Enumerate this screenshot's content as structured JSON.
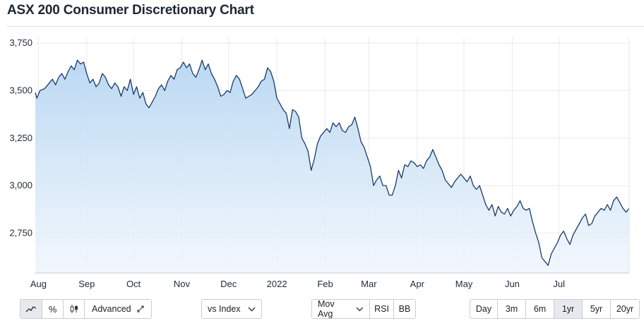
{
  "page": {
    "title": "ASX 200 Consumer Discretionary Chart"
  },
  "toolbar": {
    "chart_type_buttons": [
      {
        "icon": "line-chart-icon",
        "active": true
      },
      {
        "icon": "percent-icon",
        "active": false
      },
      {
        "icon": "candlestick-icon",
        "active": false
      }
    ],
    "advanced_label": "Advanced",
    "advanced_icon": "expand-icon",
    "compare_label": "vs Index",
    "indicators": [
      "Mov Avg",
      "RSI",
      "BB"
    ],
    "ranges": [
      "Day",
      "3m",
      "6m",
      "1yr",
      "5yr",
      "20yr"
    ],
    "active_range": "1yr"
  },
  "colors": {
    "line": "#1b3a66",
    "fill_top": "#b7d6f2",
    "fill_bottom": "#eef5fc",
    "grid": "#e7eaee"
  },
  "chart_data": {
    "type": "area",
    "title": "ASX 200 Consumer Discretionary Chart",
    "xlabel": "",
    "ylabel": "",
    "ylim": [
      2540,
      3780
    ],
    "y_ticks": [
      2750,
      3000,
      3250,
      3500,
      3750
    ],
    "y_tick_labels": [
      "2,750",
      "3,000",
      "3,250",
      "3,500",
      "3,750"
    ],
    "x_ticks": [
      {
        "label": "Aug",
        "day": 1
      },
      {
        "label": "Sep",
        "day": 32
      },
      {
        "label": "Oct",
        "day": 62
      },
      {
        "label": "Nov",
        "day": 93
      },
      {
        "label": "Dec",
        "day": 123
      },
      {
        "label": "2022",
        "day": 154
      },
      {
        "label": "Feb",
        "day": 185
      },
      {
        "label": "Mar",
        "day": 213
      },
      {
        "label": "Apr",
        "day": 244
      },
      {
        "label": "May",
        "day": 274
      },
      {
        "label": "Jun",
        "day": 305
      },
      {
        "label": "Jul",
        "day": 335
      }
    ],
    "grid": true,
    "legend": "none",
    "series": [
      {
        "values": [
          [
            -1,
            3490
          ],
          [
            0,
            3460
          ],
          [
            2,
            3500
          ],
          [
            5,
            3510
          ],
          [
            8,
            3540
          ],
          [
            10,
            3560
          ],
          [
            12,
            3530
          ],
          [
            14,
            3570
          ],
          [
            16,
            3590
          ],
          [
            18,
            3560
          ],
          [
            20,
            3600
          ],
          [
            22,
            3630
          ],
          [
            24,
            3610
          ],
          [
            26,
            3660
          ],
          [
            28,
            3640
          ],
          [
            30,
            3650
          ],
          [
            32,
            3590
          ],
          [
            34,
            3540
          ],
          [
            36,
            3560
          ],
          [
            38,
            3520
          ],
          [
            40,
            3540
          ],
          [
            42,
            3590
          ],
          [
            44,
            3570
          ],
          [
            46,
            3530
          ],
          [
            48,
            3510
          ],
          [
            50,
            3540
          ],
          [
            52,
            3520
          ],
          [
            54,
            3470
          ],
          [
            56,
            3520
          ],
          [
            58,
            3500
          ],
          [
            60,
            3560
          ],
          [
            62,
            3480
          ],
          [
            64,
            3520
          ],
          [
            66,
            3460
          ],
          [
            68,
            3490
          ],
          [
            70,
            3430
          ],
          [
            72,
            3410
          ],
          [
            74,
            3440
          ],
          [
            76,
            3470
          ],
          [
            78,
            3510
          ],
          [
            80,
            3530
          ],
          [
            82,
            3500
          ],
          [
            84,
            3550
          ],
          [
            86,
            3580
          ],
          [
            88,
            3560
          ],
          [
            90,
            3610
          ],
          [
            92,
            3620
          ],
          [
            94,
            3650
          ],
          [
            96,
            3620
          ],
          [
            98,
            3640
          ],
          [
            100,
            3590
          ],
          [
            102,
            3570
          ],
          [
            104,
            3610
          ],
          [
            106,
            3660
          ],
          [
            108,
            3610
          ],
          [
            110,
            3640
          ],
          [
            112,
            3590
          ],
          [
            114,
            3560
          ],
          [
            116,
            3520
          ],
          [
            118,
            3470
          ],
          [
            120,
            3480
          ],
          [
            122,
            3500
          ],
          [
            124,
            3490
          ],
          [
            126,
            3550
          ],
          [
            128,
            3580
          ],
          [
            130,
            3560
          ],
          [
            132,
            3510
          ],
          [
            134,
            3460
          ],
          [
            136,
            3470
          ],
          [
            138,
            3480
          ],
          [
            140,
            3500
          ],
          [
            142,
            3520
          ],
          [
            144,
            3550
          ],
          [
            146,
            3560
          ],
          [
            148,
            3620
          ],
          [
            150,
            3600
          ],
          [
            152,
            3550
          ],
          [
            154,
            3460
          ],
          [
            156,
            3430
          ],
          [
            158,
            3400
          ],
          [
            160,
            3380
          ],
          [
            162,
            3300
          ],
          [
            164,
            3400
          ],
          [
            166,
            3390
          ],
          [
            168,
            3360
          ],
          [
            170,
            3250
          ],
          [
            172,
            3220
          ],
          [
            174,
            3180
          ],
          [
            176,
            3080
          ],
          [
            178,
            3140
          ],
          [
            180,
            3220
          ],
          [
            182,
            3260
          ],
          [
            184,
            3280
          ],
          [
            186,
            3300
          ],
          [
            188,
            3280
          ],
          [
            190,
            3330
          ],
          [
            192,
            3310
          ],
          [
            194,
            3330
          ],
          [
            196,
            3290
          ],
          [
            198,
            3280
          ],
          [
            200,
            3310
          ],
          [
            202,
            3320
          ],
          [
            204,
            3360
          ],
          [
            206,
            3300
          ],
          [
            208,
            3230
          ],
          [
            210,
            3200
          ],
          [
            212,
            3150
          ],
          [
            214,
            3100
          ],
          [
            216,
            3000
          ],
          [
            218,
            3030
          ],
          [
            220,
            3050
          ],
          [
            222,
            3000
          ],
          [
            224,
            3000
          ],
          [
            226,
            2950
          ],
          [
            228,
            2950
          ],
          [
            230,
            3000
          ],
          [
            232,
            3080
          ],
          [
            234,
            3040
          ],
          [
            236,
            3110
          ],
          [
            238,
            3100
          ],
          [
            240,
            3130
          ],
          [
            242,
            3120
          ],
          [
            244,
            3100
          ],
          [
            246,
            3110
          ],
          [
            248,
            3090
          ],
          [
            250,
            3130
          ],
          [
            252,
            3150
          ],
          [
            254,
            3190
          ],
          [
            256,
            3150
          ],
          [
            258,
            3110
          ],
          [
            260,
            3080
          ],
          [
            262,
            3030
          ],
          [
            264,
            3010
          ],
          [
            266,
            2990
          ],
          [
            268,
            3020
          ],
          [
            270,
            3040
          ],
          [
            272,
            3060
          ],
          [
            274,
            3040
          ],
          [
            276,
            3020
          ],
          [
            278,
            3050
          ],
          [
            280,
            3000
          ],
          [
            282,
            2980
          ],
          [
            284,
            3000
          ],
          [
            286,
            2950
          ],
          [
            288,
            2900
          ],
          [
            290,
            2870
          ],
          [
            292,
            2900
          ],
          [
            294,
            2840
          ],
          [
            296,
            2890
          ],
          [
            298,
            2860
          ],
          [
            300,
            2850
          ],
          [
            302,
            2880
          ],
          [
            304,
            2840
          ],
          [
            306,
            2870
          ],
          [
            308,
            2890
          ],
          [
            310,
            2920
          ],
          [
            312,
            2880
          ],
          [
            314,
            2870
          ],
          [
            316,
            2880
          ],
          [
            318,
            2810
          ],
          [
            320,
            2750
          ],
          [
            322,
            2700
          ],
          [
            324,
            2620
          ],
          [
            326,
            2600
          ],
          [
            328,
            2580
          ],
          [
            330,
            2640
          ],
          [
            332,
            2670
          ],
          [
            334,
            2700
          ],
          [
            336,
            2740
          ],
          [
            338,
            2760
          ],
          [
            340,
            2720
          ],
          [
            342,
            2690
          ],
          [
            344,
            2740
          ],
          [
            346,
            2770
          ],
          [
            348,
            2800
          ],
          [
            350,
            2830
          ],
          [
            352,
            2850
          ],
          [
            354,
            2790
          ],
          [
            356,
            2800
          ],
          [
            358,
            2840
          ],
          [
            360,
            2860
          ],
          [
            362,
            2880
          ],
          [
            364,
            2870
          ],
          [
            366,
            2900
          ],
          [
            368,
            2870
          ],
          [
            370,
            2920
          ],
          [
            372,
            2940
          ],
          [
            374,
            2910
          ],
          [
            376,
            2880
          ],
          [
            378,
            2860
          ],
          [
            380,
            2880
          ]
        ]
      }
    ]
  }
}
